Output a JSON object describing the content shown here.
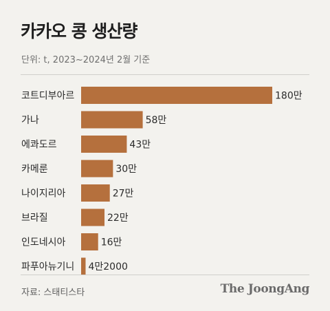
{
  "header": {
    "title": "카카오 콩 생산량",
    "subtitle": "단위: t, 2023~2024년 2월 기준"
  },
  "footer": {
    "source": "자료: 스태티스타",
    "brand": "The JoongAng"
  },
  "colors": {
    "bar": "#b5703d",
    "background": "#f3f2ee"
  },
  "chart_data": {
    "type": "bar",
    "orientation": "horizontal",
    "title": "카카오 콩 생산량",
    "unit": "t",
    "categories": [
      "코트디부아르",
      "가나",
      "에콰도르",
      "카메룬",
      "나이지리아",
      "브라질",
      "인도네시아",
      "파푸아뉴기니"
    ],
    "values": [
      1800000,
      580000,
      430000,
      300000,
      270000,
      220000,
      160000,
      42000
    ],
    "value_labels": [
      "180만",
      "58만",
      "43만",
      "30만",
      "27만",
      "22만",
      "16만",
      "4만2000"
    ],
    "xlim": [
      0,
      1800000
    ],
    "grid": false,
    "legend": "none"
  }
}
